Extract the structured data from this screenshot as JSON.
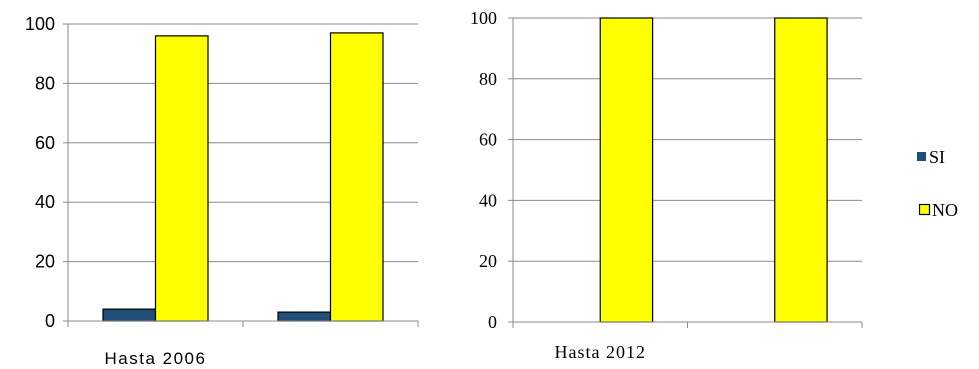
{
  "chart_data": [
    {
      "type": "bar",
      "categories": [
        "Hasta 2006",
        ""
      ],
      "series": [
        {
          "name": "SI",
          "values": [
            4,
            3
          ],
          "color": "#1F4E79"
        },
        {
          "name": "NO",
          "values": [
            96,
            97
          ],
          "color": "#FFFF00"
        }
      ],
      "ylim": [
        0,
        100
      ],
      "y_ticks": [
        0,
        20,
        40,
        60,
        80,
        100
      ],
      "grid": true
    },
    {
      "type": "bar",
      "categories": [
        "Hasta 2012",
        ""
      ],
      "series": [
        {
          "name": "SI",
          "values": [
            0,
            0
          ],
          "color": "#1F4E79"
        },
        {
          "name": "NO",
          "values": [
            100,
            100
          ],
          "color": "#FFFF00"
        }
      ],
      "ylim": [
        0,
        100
      ],
      "y_ticks": [
        0,
        20,
        40,
        60,
        80,
        100
      ],
      "grid": true,
      "legend_position": "right"
    }
  ]
}
